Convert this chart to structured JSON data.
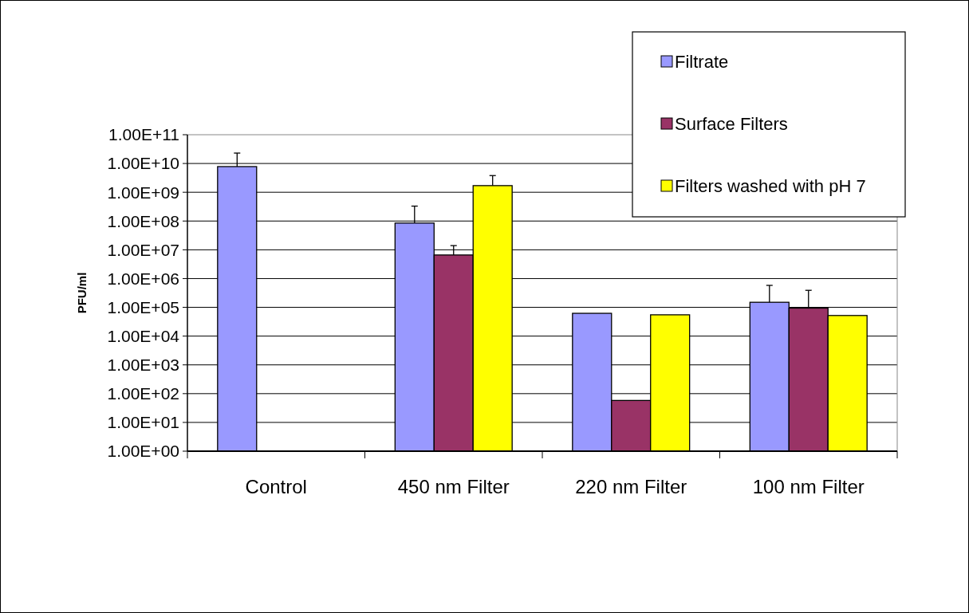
{
  "chart_data": {
    "type": "bar",
    "ylabel": "PFU/ml",
    "categories": [
      "Control",
      "450 nm Filter",
      "220 nm Filter",
      "100 nm Filter"
    ],
    "log": true,
    "ylim": [
      1,
      100000000000
    ],
    "yticks": [
      {
        "value": 1,
        "label": "1.00E+00"
      },
      {
        "value": 10,
        "label": "1.00E+01"
      },
      {
        "value": 100,
        "label": "1.00E+02"
      },
      {
        "value": 1000,
        "label": "1.00E+03"
      },
      {
        "value": 10000,
        "label": "1.00E+04"
      },
      {
        "value": 100000,
        "label": "1.00E+05"
      },
      {
        "value": 1000000,
        "label": "1.00E+06"
      },
      {
        "value": 10000000,
        "label": "1.00E+07"
      },
      {
        "value": 100000000,
        "label": "1.00E+08"
      },
      {
        "value": 1000000000,
        "label": "1.00E+09"
      },
      {
        "value": 10000000000,
        "label": "1.00E+10"
      },
      {
        "value": 100000000000,
        "label": "1.00E+11"
      }
    ],
    "grid": "y",
    "legend": "top right",
    "series": [
      {
        "name": "Filtrate",
        "color": "#9999ff",
        "values": [
          7800000000,
          85000000,
          62000,
          150000
        ],
        "errors": [
          [
            7800000000,
            23000000000
          ],
          [
            85000000,
            330000000
          ],
          null,
          [
            150000,
            580000
          ]
        ]
      },
      {
        "name": "Surface Filters",
        "color": "#993366",
        "values": [
          null,
          6600000,
          58,
          94000
        ],
        "errors": [
          null,
          [
            6600000,
            14000000
          ],
          null,
          [
            94000,
            390000
          ]
        ]
      },
      {
        "name": "Filters washed with pH 7",
        "color": "#ffff00",
        "values": [
          null,
          1700000000,
          55000,
          52000
        ],
        "errors": [
          null,
          [
            1700000000,
            3800000000
          ],
          null,
          null
        ]
      }
    ]
  }
}
